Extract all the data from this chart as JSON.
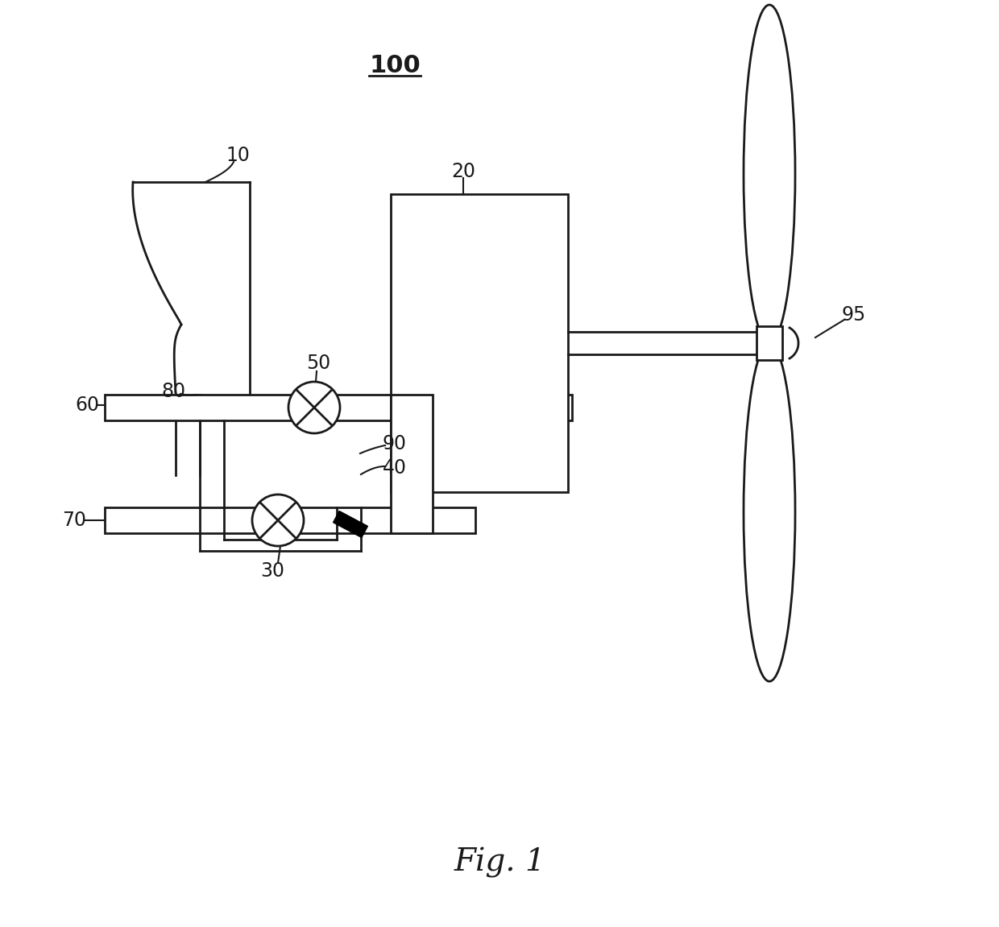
{
  "bg_color": "#ffffff",
  "line_color": "#1a1a1a",
  "line_width": 2.0,
  "title": "100",
  "fig_label": "Fig. 1",
  "label_fontsize": 17,
  "title_fontsize": 22,
  "fig_fontsize": 28
}
